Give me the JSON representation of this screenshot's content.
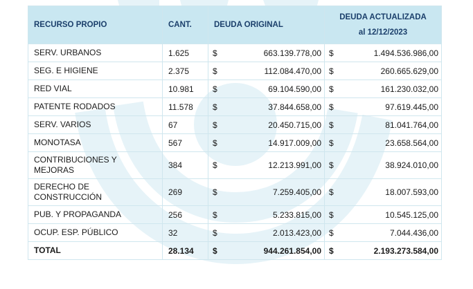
{
  "table": {
    "headers": {
      "resource": "RECURSO PROPIO",
      "quantity": "CANT.",
      "original_debt": "DEUDA ORIGINAL",
      "updated_debt_line1": "DEUDA ACTUALIZADA",
      "updated_debt_line2": "al 12/12/2023"
    },
    "currency_symbol": "$",
    "rows": [
      {
        "name": "SERV. URBANOS",
        "qty": "1.625",
        "original": "663.139.778,00",
        "updated": "1.494.536.986,00"
      },
      {
        "name": "SEG. E HIGIENE",
        "qty": "2.375",
        "original": "112.084.470,00",
        "updated": "260.665.629,00"
      },
      {
        "name": "RED VIAL",
        "qty": "10.981",
        "original": "69.104.590,00",
        "updated": "161.230.032,00"
      },
      {
        "name": "PATENTE RODADOS",
        "qty": "11.578",
        "original": "37.844.658,00",
        "updated": "97.619.445,00"
      },
      {
        "name": "SERV. VARIOS",
        "qty": "67",
        "original": "20.450.715,00",
        "updated": "81.041.764,00"
      },
      {
        "name": "MONOTASA",
        "qty": "567",
        "original": "14.917.009,00",
        "updated": "23.658.564,00"
      },
      {
        "name_line1": "CONTRIBUCIONES Y",
        "name_line2": "MEJORAS",
        "qty": "384",
        "original": "12.213.991,00",
        "updated": "38.924.010,00"
      },
      {
        "name_line1": "DERECHO DE",
        "name_line2": "CONSTRUCCIÓN",
        "qty": "269",
        "original": "7.259.405,00",
        "updated": "18.007.593,00"
      },
      {
        "name": "PUB. Y PROPAGANDA",
        "qty": "256",
        "original": "5.233.815,00",
        "updated": "10.545.125,00"
      },
      {
        "name": "OCUP. ESP. PÚBLICO",
        "qty": "32",
        "original": "2.013.423,00",
        "updated": "7.044.436,00"
      }
    ],
    "total": {
      "name": "TOTAL",
      "qty": "28.134",
      "original": "944.261.854,00",
      "updated": "2.193.273.584,00"
    }
  },
  "colors": {
    "header_bg": "#c9e7f1",
    "header_text": "#1b3f6b",
    "watermark": "#e4f2f7"
  }
}
